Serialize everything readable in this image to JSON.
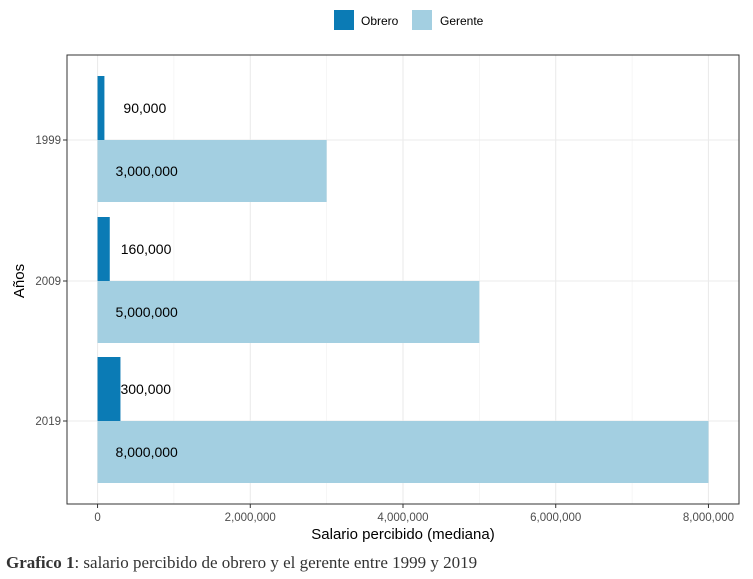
{
  "chart_data": {
    "type": "bar",
    "orientation": "horizontal",
    "categories": [
      "1999",
      "2009",
      "2019"
    ],
    "series": [
      {
        "name": "Obrero",
        "values": [
          90000,
          160000,
          300000
        ],
        "color": "#0b7bb5"
      },
      {
        "name": "Gerente",
        "values": [
          3000000,
          5000000,
          8000000
        ],
        "color": "#a3cfe1"
      }
    ],
    "data_labels": {
      "Obrero": [
        "90,000",
        "160,000",
        "300,000"
      ],
      "Gerente": [
        "3,000,000",
        "5,000,000",
        "8,000,000"
      ]
    },
    "xlabel": "Salario percibido (mediana)",
    "ylabel": "Años",
    "xlim": [
      -400000,
      8400000
    ],
    "x_ticks": [
      0,
      2000000,
      4000000,
      6000000,
      8000000
    ],
    "x_tick_labels": [
      "0",
      "2,000,000",
      "4,000,000",
      "6,000,000",
      "8,000,000"
    ],
    "grid": true,
    "legend_position": "top"
  },
  "caption": {
    "label": "Grafico 1",
    "text": ": salario percibido de obrero y el gerente entre 1999 y 2019"
  }
}
